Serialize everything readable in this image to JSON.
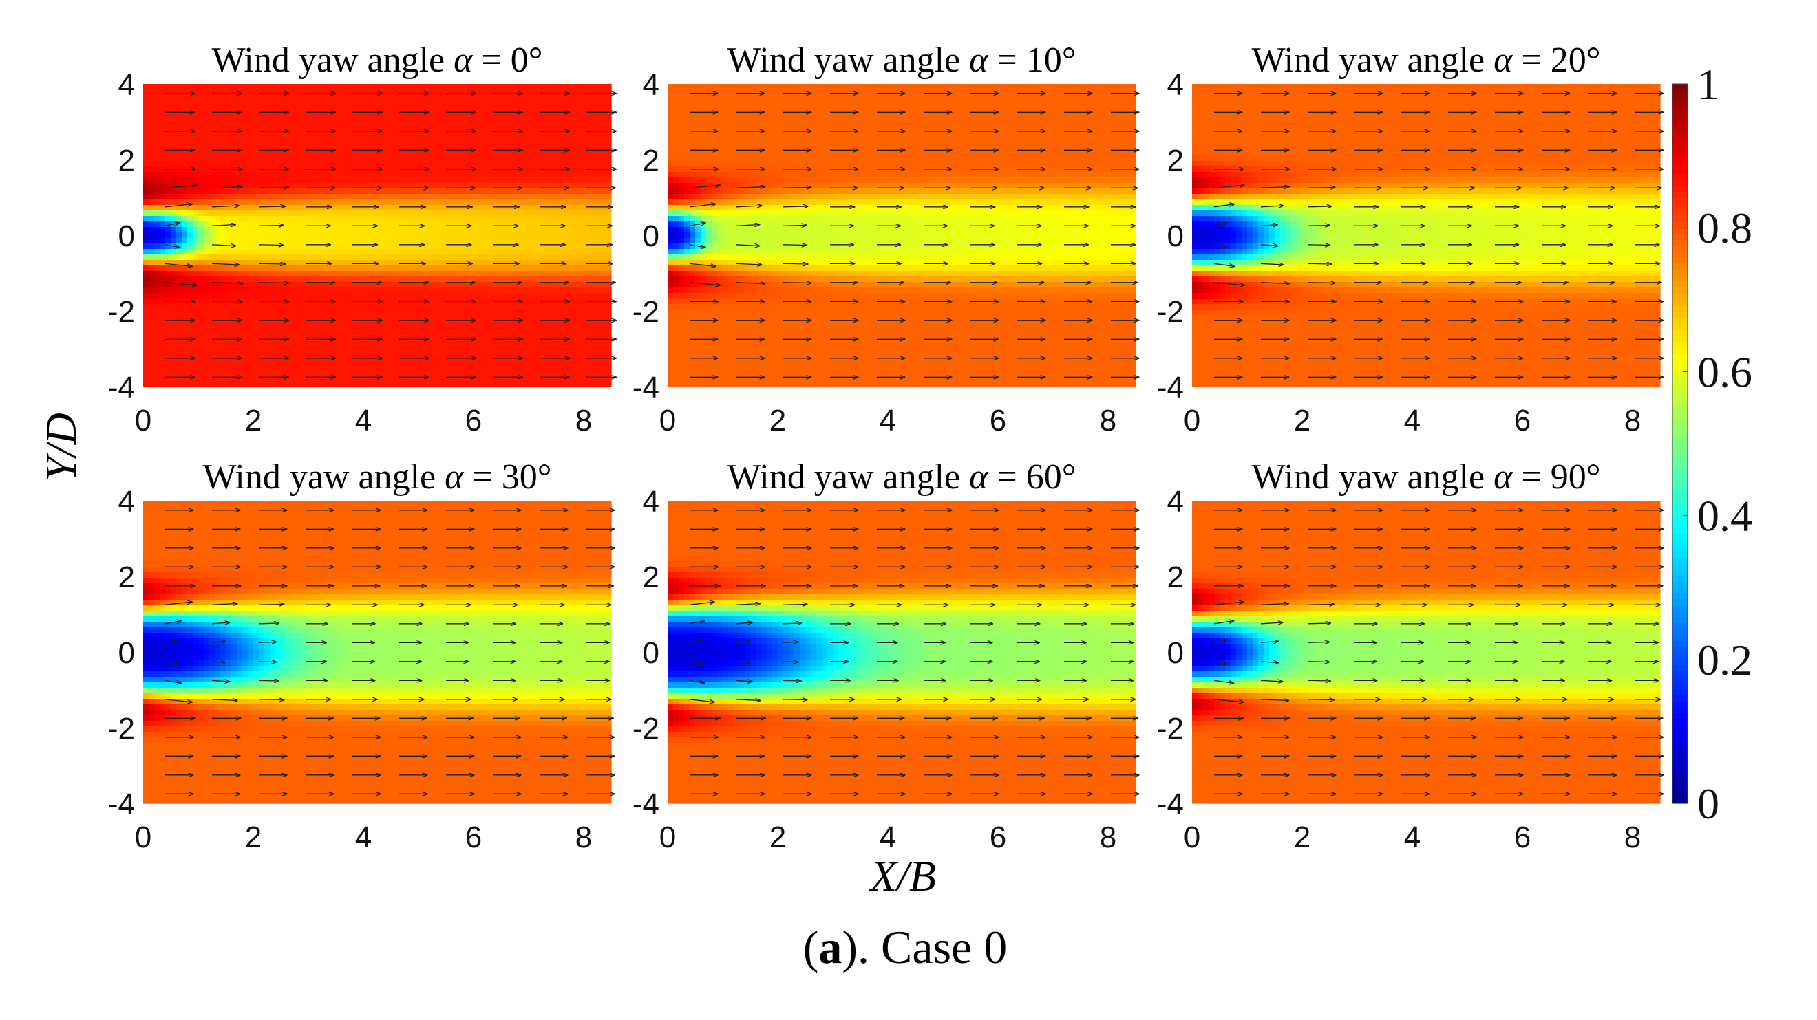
{
  "chart_data": {
    "type": "heatmap",
    "variant": "contour-with-vector-field",
    "shared_xlabel": "X/B",
    "shared_ylabel": "Y/D",
    "caption_label": "a",
    "caption_text": "). Case 0",
    "caption_open": "(",
    "colorbar": {
      "range": [
        0,
        1
      ],
      "ticks": [
        "0",
        "0.2",
        "0.4",
        "0.6",
        "0.8",
        "1"
      ],
      "colormap": "jet",
      "stops": [
        "#00008f",
        "#0000ff",
        "#00ffff",
        "#ffff00",
        "#ff0000",
        "#800000"
      ]
    },
    "xlim": [
      0,
      8.5
    ],
    "ylim": [
      -4,
      4
    ],
    "x_ticks": [
      "0",
      "2",
      "4",
      "6",
      "8"
    ],
    "y_ticks": [
      "4",
      "2",
      "0",
      "-2",
      "-4"
    ],
    "panels": [
      {
        "title_prefix": "Wind yaw angle ",
        "alpha_symbol": "α",
        "title_suffix": " = 0°",
        "free_stream_value": 0.86,
        "core_value": 0.08,
        "core_length": 0.9,
        "core_half_width": 0.6,
        "wake_half_width": 1.0,
        "wake_recovered_value": 0.62,
        "edge_peak_value": 0.98
      },
      {
        "title_prefix": "Wind yaw angle ",
        "alpha_symbol": "α",
        "title_suffix": " = 10°",
        "free_stream_value": 0.78,
        "core_value": 0.08,
        "core_length": 0.6,
        "core_half_width": 0.6,
        "wake_half_width": 1.1,
        "wake_recovered_value": 0.56,
        "edge_peak_value": 0.97
      },
      {
        "title_prefix": "Wind yaw angle ",
        "alpha_symbol": "α",
        "title_suffix": " = 20°",
        "free_stream_value": 0.78,
        "core_value": 0.08,
        "core_length": 1.5,
        "core_half_width": 0.8,
        "wake_half_width": 1.2,
        "wake_recovered_value": 0.55,
        "edge_peak_value": 0.97
      },
      {
        "title_prefix": "Wind yaw angle ",
        "alpha_symbol": "α",
        "title_suffix": " = 30°",
        "free_stream_value": 0.78,
        "core_value": 0.08,
        "core_length": 2.2,
        "core_half_width": 1.0,
        "wake_half_width": 1.4,
        "wake_recovered_value": 0.5,
        "edge_peak_value": 0.96
      },
      {
        "title_prefix": "Wind yaw angle ",
        "alpha_symbol": "α",
        "title_suffix": " = 60°",
        "free_stream_value": 0.78,
        "core_value": 0.08,
        "core_length": 2.8,
        "core_half_width": 1.1,
        "wake_half_width": 1.4,
        "wake_recovered_value": 0.48,
        "edge_peak_value": 0.96
      },
      {
        "title_prefix": "Wind yaw angle ",
        "alpha_symbol": "α",
        "title_suffix": " = 90°",
        "free_stream_value": 0.78,
        "core_value": 0.08,
        "core_length": 1.3,
        "core_half_width": 0.8,
        "wake_half_width": 1.3,
        "wake_recovered_value": 0.5,
        "edge_peak_value": 0.97
      }
    ]
  }
}
